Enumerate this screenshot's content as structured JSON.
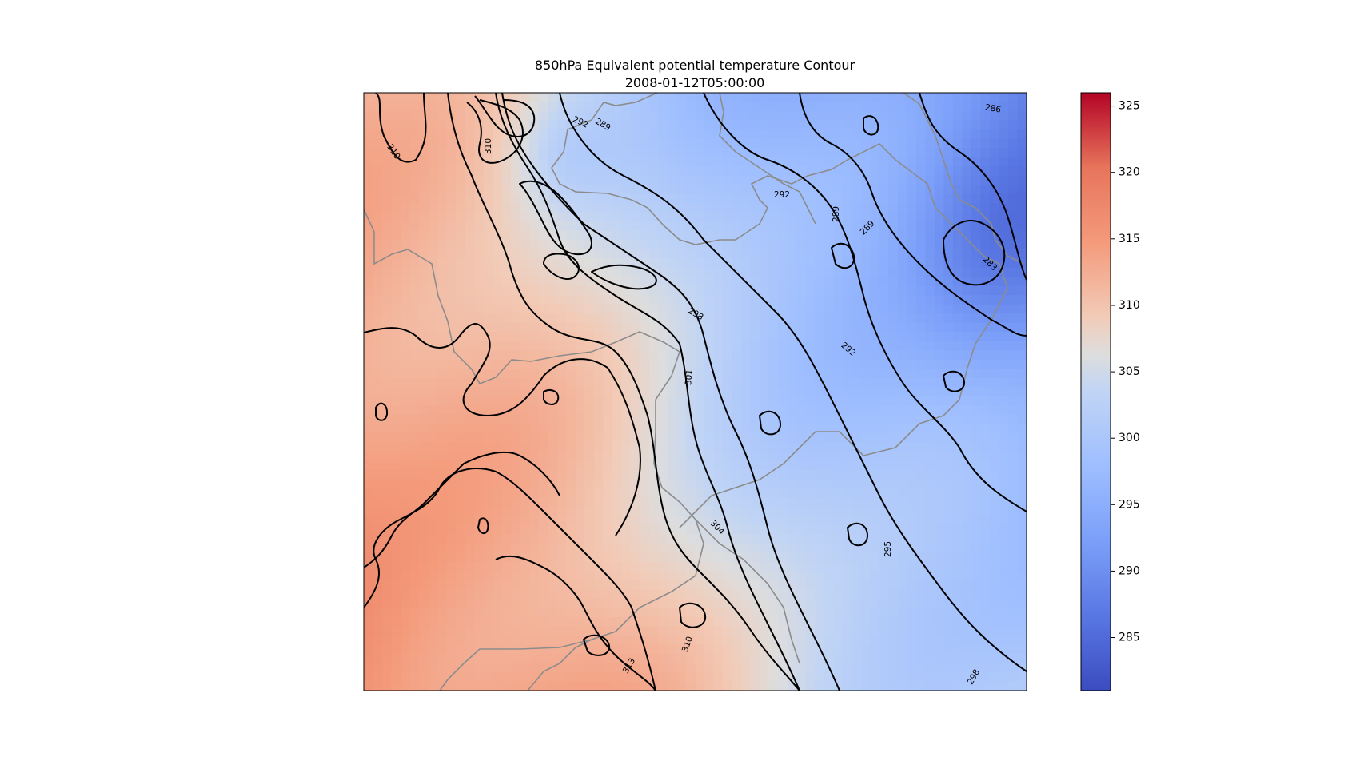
{
  "chart_data": {
    "type": "heatmap",
    "title": "850hPa Equivalent potential temperature Contour",
    "subtitle": "2008-01-12T05:00:00",
    "colormap": "coolwarm",
    "colors": {
      "cold": "#3b4cc0",
      "mid": "#dddddd",
      "warm": "#b40426",
      "contour": "#000000",
      "border": "#8c8c8c"
    },
    "colorbar": {
      "range": [
        281,
        326
      ],
      "ticks": [
        "285",
        "290",
        "295",
        "300",
        "305",
        "310",
        "315",
        "320",
        "325"
      ]
    },
    "contour_levels": [
      283,
      286,
      289,
      292,
      295,
      298,
      301,
      304,
      307,
      310,
      313
    ],
    "contour_labels": [
      "310",
      "310",
      "292",
      "289",
      "286",
      "292",
      "289",
      "289",
      "283",
      "298",
      "292",
      "301",
      "304",
      "295",
      "310",
      "313",
      "298"
    ],
    "field_description": "warm (310-322) in west and southwest, cold (283-292) in northeast, sharp gradient in north-center"
  }
}
